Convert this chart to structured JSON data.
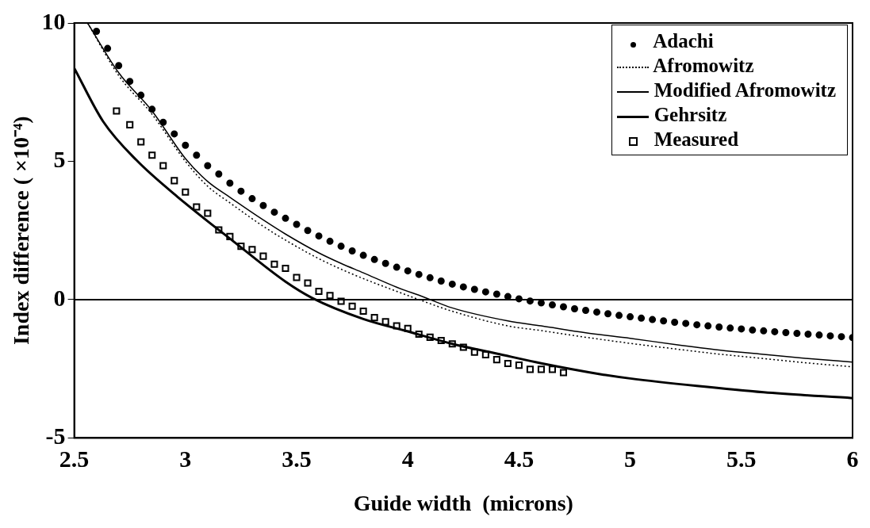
{
  "chart_data": {
    "type": "line",
    "xlabel": "Guide width  (microns)",
    "ylabel": "Index difference ( ×10⁻⁴)",
    "xlim": [
      2.5,
      6
    ],
    "xticks": [
      2.5,
      3,
      3.5,
      4,
      4.5,
      5,
      5.5,
      6
    ],
    "ylim": [
      -5,
      10
    ],
    "yticks": [
      -5,
      0,
      5,
      10
    ],
    "grid": false,
    "legend": "top right",
    "ref_lines": [
      {
        "axis": "y",
        "value": 0,
        "color": "#000000"
      }
    ],
    "series": [
      {
        "name": "Adachi",
        "type": "scatter",
        "marker": "circle",
        "color": "#000000",
        "x": [
          2.6,
          2.65,
          2.7,
          2.75,
          2.8,
          2.85,
          2.9,
          2.95,
          3,
          3.05,
          3.1,
          3.15,
          3.2,
          3.25,
          3.3,
          3.35,
          3.4,
          3.45,
          3.5,
          3.55,
          3.6,
          3.65,
          3.7,
          3.75,
          3.8,
          3.85,
          3.9,
          3.95,
          4,
          4.05,
          4.1,
          4.15,
          4.2,
          4.25,
          4.3,
          4.35,
          4.4,
          4.45,
          4.5,
          4.55,
          4.6,
          4.65,
          4.7,
          4.75,
          4.8,
          4.85,
          4.9,
          4.95,
          5,
          5.05,
          5.1,
          5.15,
          5.2,
          5.25,
          5.3,
          5.35,
          5.4,
          5.45,
          5.5,
          5.55,
          5.6,
          5.65,
          5.7,
          5.75,
          5.8,
          5.85,
          5.9,
          5.95,
          6
        ],
        "values": [
          9.7,
          9.08,
          8.46,
          7.89,
          7.39,
          6.88,
          6.41,
          5.99,
          5.58,
          5.22,
          4.84,
          4.54,
          4.21,
          3.92,
          3.65,
          3.4,
          3.16,
          2.94,
          2.72,
          2.5,
          2.3,
          2.11,
          1.93,
          1.76,
          1.6,
          1.45,
          1.31,
          1.17,
          1.04,
          0.91,
          0.79,
          0.67,
          0.56,
          0.46,
          0.37,
          0.28,
          0.2,
          0.11,
          0.03,
          -0.05,
          -0.12,
          -0.19,
          -0.26,
          -0.33,
          -0.39,
          -0.45,
          -0.51,
          -0.57,
          -0.62,
          -0.67,
          -0.72,
          -0.77,
          -0.82,
          -0.86,
          -0.91,
          -0.95,
          -0.99,
          -1.03,
          -1.06,
          -1.1,
          -1.13,
          -1.16,
          -1.19,
          -1.22,
          -1.25,
          -1.28,
          -1.31,
          -1.34,
          -1.37
        ]
      },
      {
        "name": "Afromowitz",
        "marker": "none",
        "line_style": "dotted",
        "color": "#000000",
        "x": [
          2.56,
          2.7,
          2.85,
          3,
          3.1,
          3.2,
          3.35,
          3.45,
          3.6,
          3.7,
          3.8,
          3.95,
          4.05,
          4.2,
          4.45,
          4.6,
          4.8,
          5,
          5.2,
          5.4,
          5.6,
          5.8,
          6
        ],
        "values": [
          10,
          8.1,
          6.7,
          5,
          4.1,
          3.5,
          2.65,
          2.15,
          1.48,
          1.1,
          0.76,
          0.3,
          0,
          -0.42,
          -0.95,
          -1.12,
          -1.36,
          -1.58,
          -1.78,
          -1.97,
          -2.13,
          -2.29,
          -2.43
        ]
      },
      {
        "name": "Modified Afromowitz",
        "marker": "none",
        "line_style": "solid",
        "color": "#000000",
        "x": [
          2.56,
          2.7,
          2.85,
          3,
          3.1,
          3.2,
          3.35,
          3.45,
          3.6,
          3.7,
          3.8,
          3.95,
          4.07,
          4.2,
          4.45,
          4.6,
          4.8,
          5,
          5.2,
          5.4,
          5.6,
          5.8,
          6
        ],
        "values": [
          10,
          8.2,
          6.82,
          5.1,
          4.27,
          3.7,
          2.88,
          2.37,
          1.69,
          1.31,
          0.97,
          0.45,
          0.1,
          -0.3,
          -0.77,
          -0.95,
          -1.2,
          -1.4,
          -1.62,
          -1.82,
          -1.98,
          -2.13,
          -2.26
        ]
      },
      {
        "name": "Gehrsitz",
        "marker": "none",
        "line_style": "solid",
        "color": "#000000",
        "x": [
          2.5,
          2.63,
          2.78,
          2.97,
          3.22,
          3.45,
          3.57,
          3.8,
          4,
          4.2,
          4.4,
          4.6,
          4.87,
          5,
          5.3,
          5.6,
          6
        ],
        "values": [
          8.37,
          6.44,
          5.04,
          3.68,
          2.08,
          0.65,
          0.06,
          -0.7,
          -1.15,
          -1.6,
          -1.95,
          -2.3,
          -2.7,
          -2.85,
          -3.12,
          -3.35,
          -3.56
        ]
      },
      {
        "name": "Measured",
        "type": "scatter",
        "marker": "square",
        "color": "#000000",
        "x": [
          2.69,
          2.75,
          2.8,
          2.85,
          2.9,
          2.95,
          3,
          3.05,
          3.1,
          3.15,
          3.2,
          3.25,
          3.3,
          3.35,
          3.4,
          3.45,
          3.5,
          3.55,
          3.6,
          3.65,
          3.7,
          3.75,
          3.8,
          3.85,
          3.9,
          3.95,
          4,
          4.05,
          4.1,
          4.15,
          4.2,
          4.25,
          4.3,
          4.35,
          4.4,
          4.45,
          4.5,
          4.55,
          4.6,
          4.65,
          4.7
        ],
        "values": [
          6.82,
          6.32,
          5.7,
          5.22,
          4.84,
          4.3,
          3.89,
          3.35,
          3.12,
          2.52,
          2.28,
          1.93,
          1.81,
          1.57,
          1.28,
          1.13,
          0.8,
          0.6,
          0.3,
          0.15,
          -0.06,
          -0.24,
          -0.42,
          -0.65,
          -0.8,
          -0.95,
          -1.04,
          -1.25,
          -1.36,
          -1.48,
          -1.6,
          -1.72,
          -1.9,
          -1.99,
          -2.17,
          -2.31,
          -2.37,
          -2.52,
          -2.52,
          -2.52,
          -2.64
        ]
      }
    ]
  }
}
